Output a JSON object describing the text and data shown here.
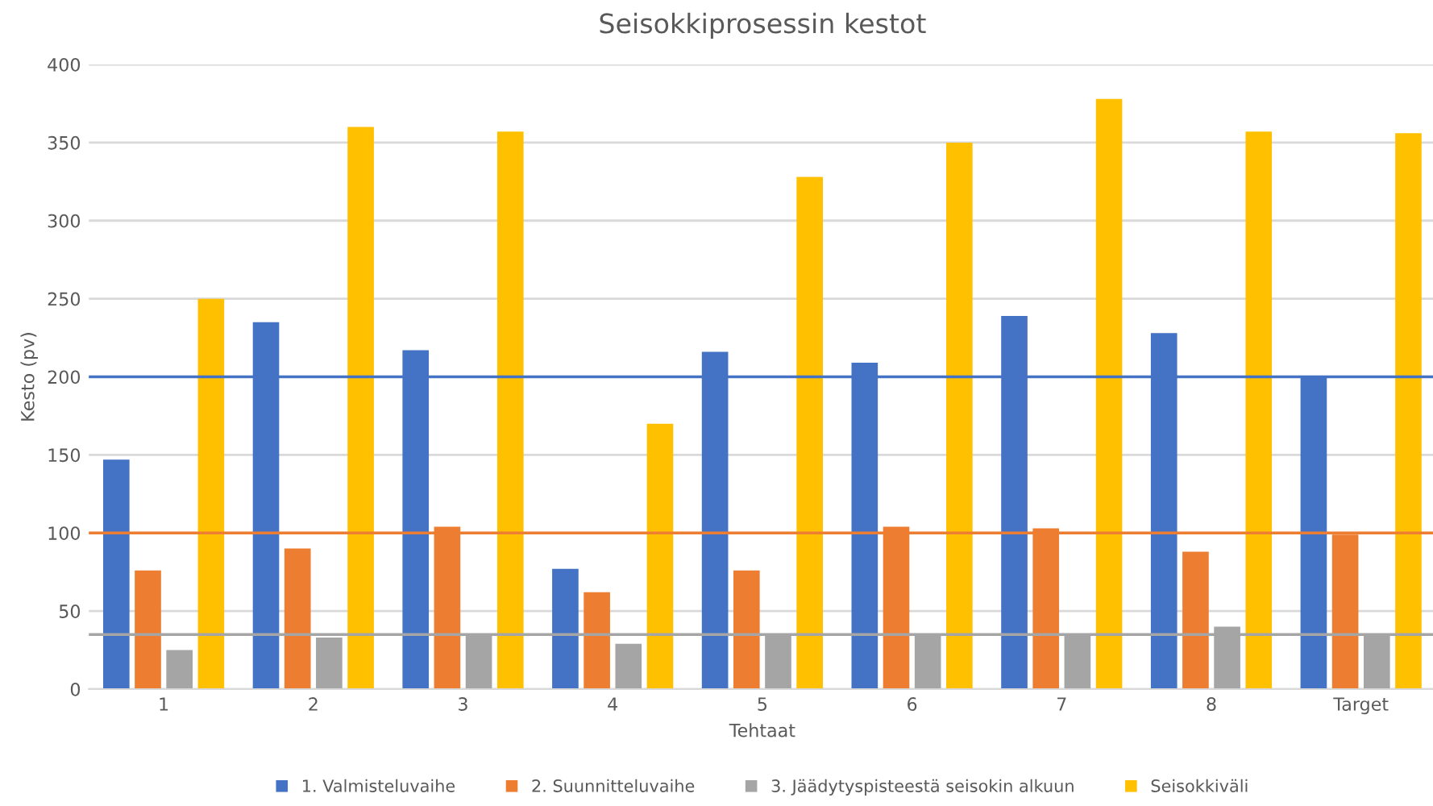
{
  "chart_data": {
    "type": "bar",
    "title": "Seisokkiprosessin kestot",
    "xlabel": "Tehtaat",
    "ylabel": "Kesto (pv)",
    "categories": [
      "1",
      "2",
      "3",
      "4",
      "5",
      "6",
      "7",
      "8",
      "Target"
    ],
    "series": [
      {
        "name": "1. Valmisteluvaihe",
        "color": "#4472c4",
        "values": [
          147,
          235,
          217,
          77,
          216,
          209,
          239,
          228,
          200
        ]
      },
      {
        "name": "2. Suunnitteluvaihe",
        "color": "#ed7d31",
        "values": [
          76,
          90,
          104,
          62,
          76,
          104,
          103,
          88,
          99
        ]
      },
      {
        "name": "3. Jäädytyspisteestä seisokin alkuun",
        "color": "#a5a5a5",
        "values": [
          25,
          33,
          35,
          29,
          35,
          35,
          35,
          40,
          35
        ]
      },
      {
        "name": "Seisokkiväli",
        "color": "#ffc000",
        "values": [
          250,
          360,
          357,
          170,
          328,
          350,
          378,
          357,
          356
        ]
      }
    ],
    "ylim": [
      0,
      400
    ],
    "yticks": [
      0,
      50,
      100,
      150,
      200,
      250,
      300,
      350,
      400
    ],
    "grid": "y",
    "legend": "bottom",
    "ref_lines": [
      {
        "axis": "y",
        "value": 200,
        "color": "#4472c4"
      },
      {
        "axis": "y",
        "value": 100,
        "color": "#ed7d31"
      },
      {
        "axis": "y",
        "value": 35,
        "color": "#a5a5a5"
      }
    ]
  }
}
